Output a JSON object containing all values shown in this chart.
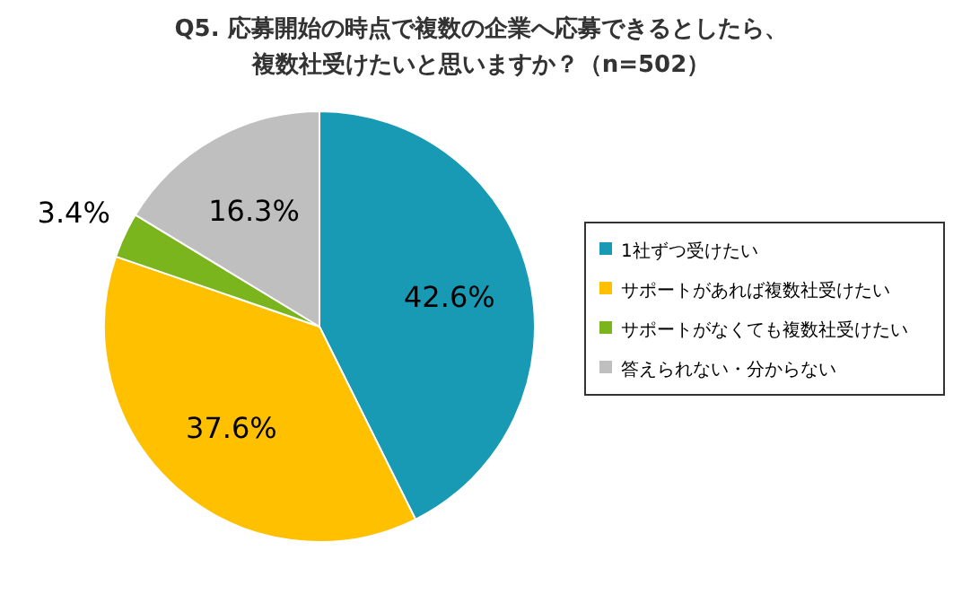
{
  "chart_data": {
    "type": "pie",
    "title": "Q5.  応募開始の時点で複数の企業へ応募できるとしたら、複数社受けたいと思いますか？（n=502）",
    "categories": [
      "1社ずつ受けたい",
      "サポートがあれば複数社受けたい",
      "サポートがなくても複数社受けたい",
      "答えられない・分からない"
    ],
    "values": [
      42.6,
      37.6,
      3.4,
      16.3
    ],
    "colors": [
      "#189ab4",
      "#ffc000",
      "#7ab51d",
      "#bfbfbf"
    ],
    "value_labels": [
      "42.6%",
      "37.6%",
      "3.4%",
      "16.3%"
    ],
    "legend": "right"
  }
}
